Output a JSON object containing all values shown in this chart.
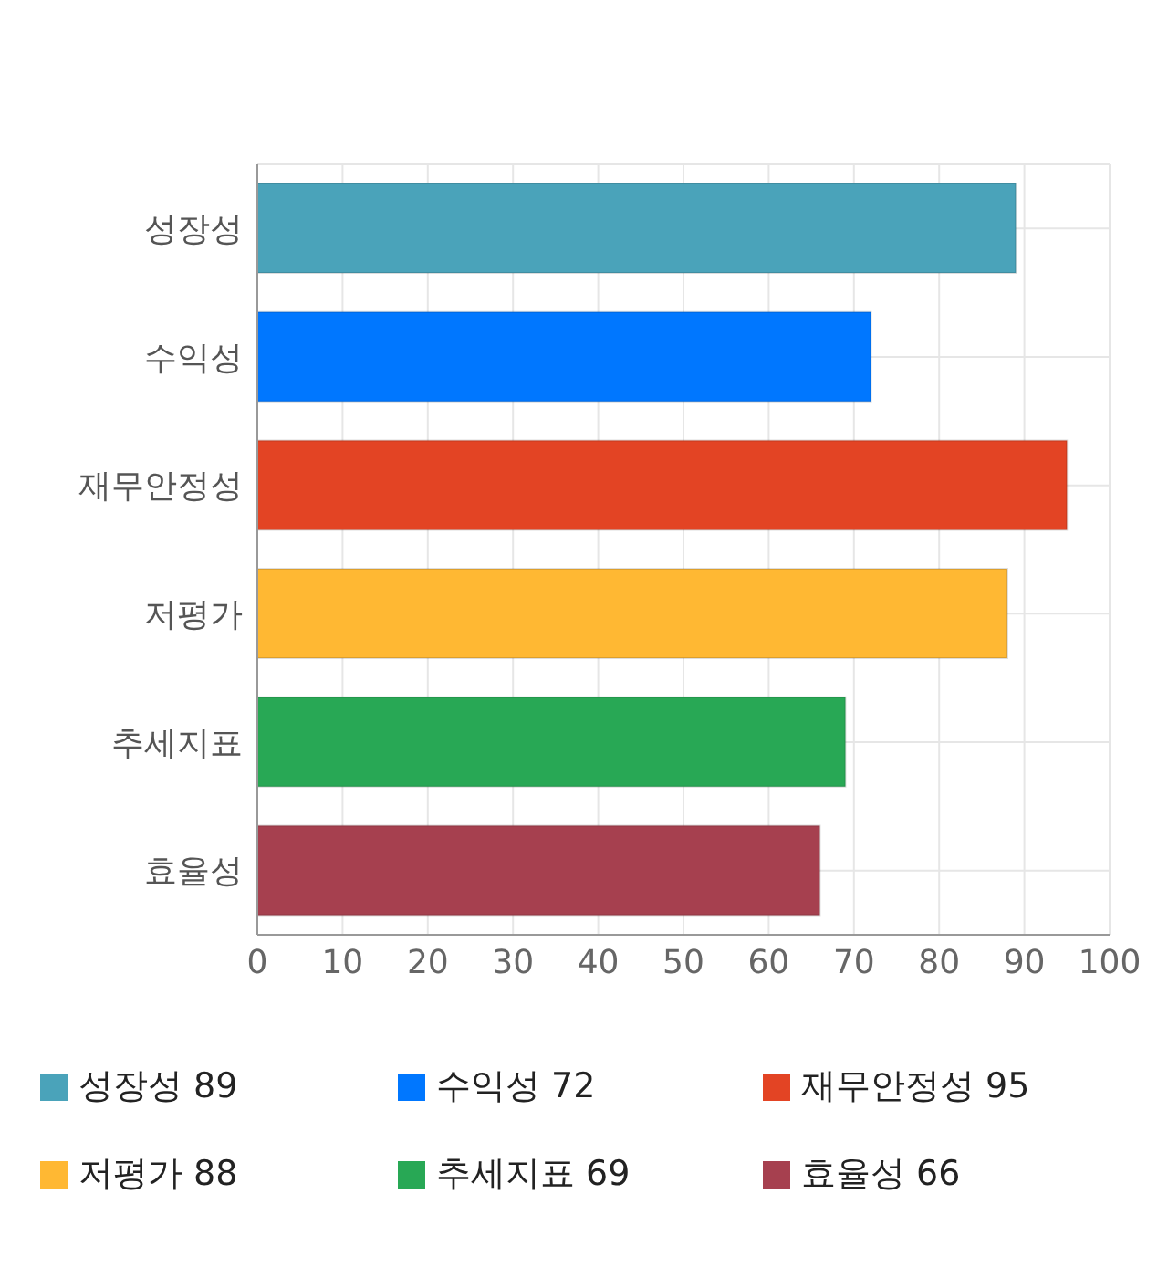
{
  "chart_data": {
    "type": "bar",
    "orientation": "horizontal",
    "stacked": true,
    "categories": [
      "성장성",
      "수익성",
      "재무안정성",
      "저평가",
      "추세지표",
      "효율성"
    ],
    "series": [
      {
        "name": "성장성 89",
        "color": "#4aa3ba",
        "values": [
          89,
          null,
          null,
          null,
          null,
          null
        ]
      },
      {
        "name": "수익성 72",
        "color": "#0077ff",
        "values": [
          null,
          72,
          null,
          null,
          null,
          null
        ]
      },
      {
        "name": "재무안정성 95",
        "color": "#e34424",
        "values": [
          null,
          null,
          95,
          null,
          null,
          null
        ]
      },
      {
        "name": "저평가 88",
        "color": "#ffb833",
        "values": [
          null,
          null,
          null,
          88,
          null,
          null
        ]
      },
      {
        "name": "추세지표 69",
        "color": "#28a855",
        "values": [
          null,
          null,
          null,
          null,
          69,
          null
        ]
      },
      {
        "name": "효율성 66",
        "color": "#a6404f",
        "values": [
          null,
          null,
          null,
          null,
          null,
          66
        ]
      }
    ],
    "xlim": [
      0,
      100
    ],
    "xticks": [
      0,
      10,
      20,
      30,
      40,
      50,
      60,
      70,
      80,
      90,
      100
    ],
    "grid": true,
    "legend": "bottom"
  }
}
